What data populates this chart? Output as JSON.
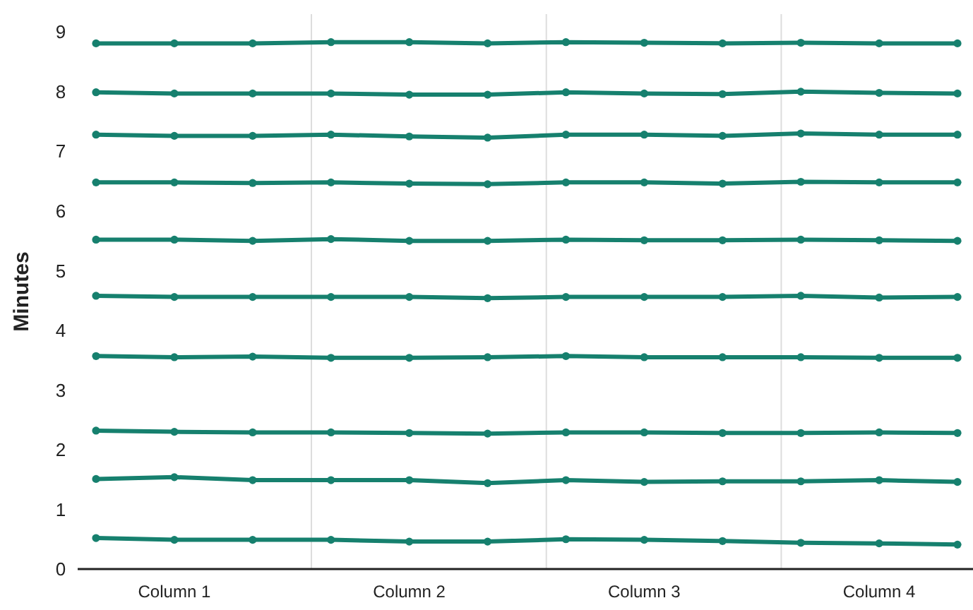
{
  "chart_data": {
    "type": "line",
    "ylabel": "Minutes",
    "marker": "circle",
    "grid": false,
    "categories": [
      null,
      "Column 1",
      null,
      null,
      "Column 2",
      null,
      null,
      "Column 3",
      null,
      null,
      "Column 4",
      null
    ],
    "ylim": [
      0,
      9.3
    ],
    "yticks": [
      0,
      1,
      2,
      3,
      4,
      5,
      6,
      7,
      8,
      9
    ],
    "series": [
      {
        "color": "#16806e",
        "values": [
          0.52,
          0.49,
          0.49,
          0.49,
          0.46,
          0.46,
          0.5,
          0.49,
          0.47,
          0.44,
          0.43,
          0.41
        ]
      },
      {
        "color": "#16806e",
        "values": [
          1.51,
          1.54,
          1.49,
          1.49,
          1.49,
          1.44,
          1.49,
          1.46,
          1.47,
          1.47,
          1.49,
          1.46
        ]
      },
      {
        "color": "#16806e",
        "values": [
          2.32,
          2.3,
          2.29,
          2.29,
          2.28,
          2.27,
          2.29,
          2.29,
          2.28,
          2.28,
          2.29,
          2.28
        ]
      },
      {
        "color": "#16806e",
        "values": [
          3.57,
          3.55,
          3.56,
          3.54,
          3.54,
          3.55,
          3.57,
          3.55,
          3.55,
          3.55,
          3.54,
          3.54
        ]
      },
      {
        "color": "#16806e",
        "values": [
          4.58,
          4.56,
          4.56,
          4.56,
          4.56,
          4.54,
          4.56,
          4.56,
          4.56,
          4.58,
          4.55,
          4.56
        ]
      },
      {
        "color": "#16806e",
        "values": [
          5.52,
          5.52,
          5.5,
          5.53,
          5.5,
          5.5,
          5.52,
          5.51,
          5.51,
          5.52,
          5.51,
          5.5
        ]
      },
      {
        "color": "#16806e",
        "values": [
          6.48,
          6.48,
          6.47,
          6.48,
          6.46,
          6.45,
          6.48,
          6.48,
          6.46,
          6.49,
          6.48,
          6.48
        ]
      },
      {
        "color": "#16806e",
        "values": [
          7.28,
          7.26,
          7.26,
          7.28,
          7.25,
          7.23,
          7.28,
          7.28,
          7.26,
          7.3,
          7.28,
          7.28
        ]
      },
      {
        "color": "#16806e",
        "values": [
          7.99,
          7.97,
          7.97,
          7.97,
          7.95,
          7.95,
          7.99,
          7.97,
          7.96,
          8.0,
          7.98,
          7.97
        ]
      },
      {
        "color": "#16806e",
        "values": [
          8.81,
          8.81,
          8.81,
          8.83,
          8.83,
          8.81,
          8.83,
          8.82,
          8.81,
          8.82,
          8.81,
          8.81
        ]
      }
    ]
  }
}
